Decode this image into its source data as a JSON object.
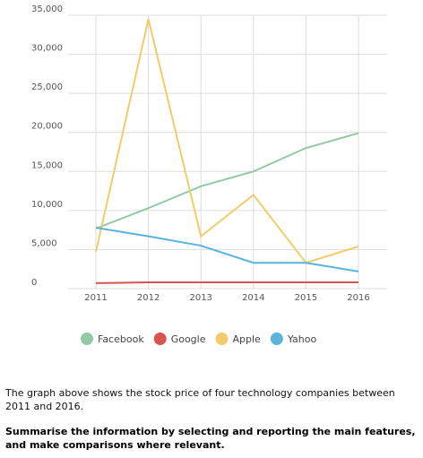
{
  "chart_data": {
    "type": "line",
    "categories": [
      "2011",
      "2012",
      "2013",
      "2014",
      "2015",
      "2016"
    ],
    "series": [
      {
        "name": "Facebook",
        "color": "#93c9a5",
        "values": [
          7700,
          10300,
          13100,
          15000,
          18000,
          19900
        ]
      },
      {
        "name": "Google",
        "color": "#d9534f",
        "values": [
          700,
          800,
          800,
          800,
          800,
          800
        ]
      },
      {
        "name": "Apple",
        "color": "#f2cc6a",
        "values": [
          4700,
          34500,
          6700,
          12000,
          3300,
          5400
        ]
      },
      {
        "name": "Yahoo",
        "color": "#5ab4da",
        "values": [
          7800,
          6700,
          5500,
          3300,
          3300,
          2200
        ]
      }
    ],
    "ylim": [
      0,
      35000
    ],
    "yticks": [
      0,
      {
        "value": 5000,
        "label": "5,000"
      },
      {
        "value": 10000,
        "label": "10,000"
      },
      {
        "value": 15000,
        "label": "15,000"
      },
      {
        "value": 20000,
        "label": "20,000"
      },
      {
        "value": 25000,
        "label": "25,000"
      },
      {
        "value": 30000,
        "label": "30,000"
      },
      {
        "value": 35000,
        "label": "35,000"
      }
    ],
    "grid": true,
    "legend": "bottom"
  },
  "text": {
    "description": "The graph above shows the stock price of four technology companies between 2011 and 2016.",
    "task": "Summarise the information by selecting and reporting the main features, and make comparisons where relevant."
  }
}
